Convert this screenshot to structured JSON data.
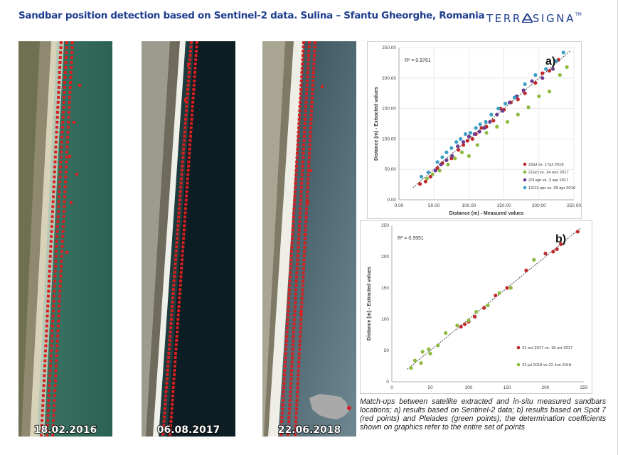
{
  "title": "Sandbar position detection based on Sentinel-2 data. Sulina – Sfantu Gheorghe, Romania",
  "logo": {
    "left": "TERR",
    "right": "SIGNA",
    "tm": "TM"
  },
  "images": [
    {
      "date": "18.02.2016"
    },
    {
      "date": "06.08.2017"
    },
    {
      "date": "22.06.2018"
    }
  ],
  "caption": "Match-ups between satellite extracted and in-situ measured sandbars locations; a) results based on Sentinel-2 data; b) results based on Spot 7 (red points) and Pleiades (green points); the determination coefficients shown on graphics refer to the entire set of points",
  "colors": {
    "title": "#1f3e8f",
    "red": "#c0292b",
    "green": "#8dba3f",
    "purple": "#6a3d8f",
    "teal": "#3b9fc6"
  },
  "chart_data": [
    {
      "type": "scatter",
      "panel_label": "a)",
      "r2": "R² = 0.9761",
      "xlabel": "Distance (m) - Measured values",
      "ylabel": "Distance (m) - Extracted values",
      "xlim": [
        0,
        250
      ],
      "ylim": [
        0,
        250
      ],
      "xticks": [
        "0.00",
        "50.00",
        "100.00",
        "150.00",
        "200.00",
        "250.00"
      ],
      "yticks": [
        "0.00",
        "50.00",
        "100.00",
        "150.00",
        "200.00",
        "250.00"
      ],
      "grid": true,
      "legend_position": "bottom-right",
      "series": [
        {
          "name": "22jul vs. 17jul 2018",
          "color": "#c0292b",
          "points": [
            [
              30,
              26
            ],
            [
              38,
              30
            ],
            [
              45,
              38
            ],
            [
              55,
              52
            ],
            [
              62,
              60
            ],
            [
              75,
              68
            ],
            [
              85,
              82
            ],
            [
              92,
              90
            ],
            [
              98,
              97
            ],
            [
              105,
              100
            ],
            [
              110,
              108
            ],
            [
              118,
              118
            ],
            [
              125,
              120
            ],
            [
              135,
              130
            ],
            [
              145,
              150
            ],
            [
              150,
              148
            ],
            [
              160,
              160
            ],
            [
              170,
              165
            ],
            [
              180,
              175
            ],
            [
              195,
              192
            ],
            [
              205,
              208
            ],
            [
              215,
              212
            ],
            [
              228,
              230
            ]
          ]
        },
        {
          "name": "21oct vs. 14 nov 2017",
          "color": "#8dba3f",
          "points": [
            [
              40,
              35
            ],
            [
              48,
              42
            ],
            [
              58,
              48
            ],
            [
              70,
              58
            ],
            [
              80,
              68
            ],
            [
              90,
              78
            ],
            [
              100,
              72
            ],
            [
              112,
              90
            ],
            [
              125,
              110
            ],
            [
              140,
              120
            ],
            [
              155,
              128
            ],
            [
              170,
              140
            ],
            [
              185,
              152
            ],
            [
              200,
              170
            ],
            [
              215,
              178
            ],
            [
              230,
              205
            ],
            [
              240,
              218
            ]
          ]
        },
        {
          "name": "2/3 apr vs. 3 apr 2017",
          "color": "#6a3d8f",
          "points": [
            [
              52,
              48
            ],
            [
              60,
              58
            ],
            [
              68,
              65
            ],
            [
              76,
              72
            ],
            [
              84,
              88
            ],
            [
              92,
              95
            ],
            [
              100,
              104
            ],
            [
              108,
              108
            ],
            [
              115,
              112
            ],
            [
              122,
              118
            ],
            [
              130,
              128
            ],
            [
              140,
              140
            ],
            [
              148,
              146
            ],
            [
              158,
              160
            ],
            [
              168,
              170
            ],
            [
              178,
              180
            ],
            [
              190,
              195
            ],
            [
              205,
              200
            ],
            [
              220,
              215
            ]
          ]
        },
        {
          "name": "12/13 apr vs. 28 apr 2016",
          "color": "#3b9fc6",
          "points": [
            [
              32,
              38
            ],
            [
              42,
              45
            ],
            [
              55,
              62
            ],
            [
              62,
              70
            ],
            [
              68,
              78
            ],
            [
              75,
              85
            ],
            [
              82,
              95
            ],
            [
              88,
              100
            ],
            [
              95,
              108
            ],
            [
              102,
              110
            ],
            [
              110,
              118
            ],
            [
              116,
              124
            ],
            [
              124,
              128
            ],
            [
              132,
              140
            ],
            [
              142,
              150
            ],
            [
              152,
              158
            ],
            [
              165,
              168
            ],
            [
              180,
              190
            ],
            [
              195,
              205
            ],
            [
              210,
              215
            ],
            [
              225,
              228
            ],
            [
              235,
              242
            ]
          ]
        }
      ]
    },
    {
      "type": "scatter",
      "panel_label": "b)",
      "r2": "R² = 0.9951",
      "xlabel": "Distance (m) - Measured values",
      "ylabel": "Distance (m) - Extracted values",
      "xlim": [
        0,
        250
      ],
      "ylim": [
        0,
        250
      ],
      "xticks": [
        "0",
        "50",
        "100",
        "150",
        "200",
        "250"
      ],
      "yticks": [
        "0",
        "50",
        "100",
        "150",
        "200",
        "250"
      ],
      "grid": false,
      "legend_position": "bottom-right",
      "series": [
        {
          "name": "21 oct 2017 vs. 18 oct 2017",
          "color": "#c0292b",
          "points": [
            [
              90,
              88
            ],
            [
              95,
              92
            ],
            [
              100,
              96
            ],
            [
              108,
              104
            ],
            [
              120,
              118
            ],
            [
              135,
              138
            ],
            [
              150,
              150
            ],
            [
              175,
              178
            ],
            [
              200,
              205
            ],
            [
              210,
              208
            ],
            [
              215,
              212
            ],
            [
              220,
              220
            ],
            [
              242,
              240
            ]
          ]
        },
        {
          "name": "22 jul 2018 vs 22 Jun 2018",
          "color": "#8dba3f",
          "points": [
            [
              25,
              22
            ],
            [
              30,
              34
            ],
            [
              38,
              30
            ],
            [
              40,
              48
            ],
            [
              48,
              52
            ],
            [
              50,
              45
            ],
            [
              60,
              58
            ],
            [
              70,
              78
            ],
            [
              85,
              90
            ],
            [
              100,
              98
            ],
            [
              110,
              112
            ],
            [
              125,
              122
            ],
            [
              140,
              142
            ],
            [
              155,
              150
            ],
            [
              185,
              195
            ]
          ]
        }
      ]
    }
  ]
}
